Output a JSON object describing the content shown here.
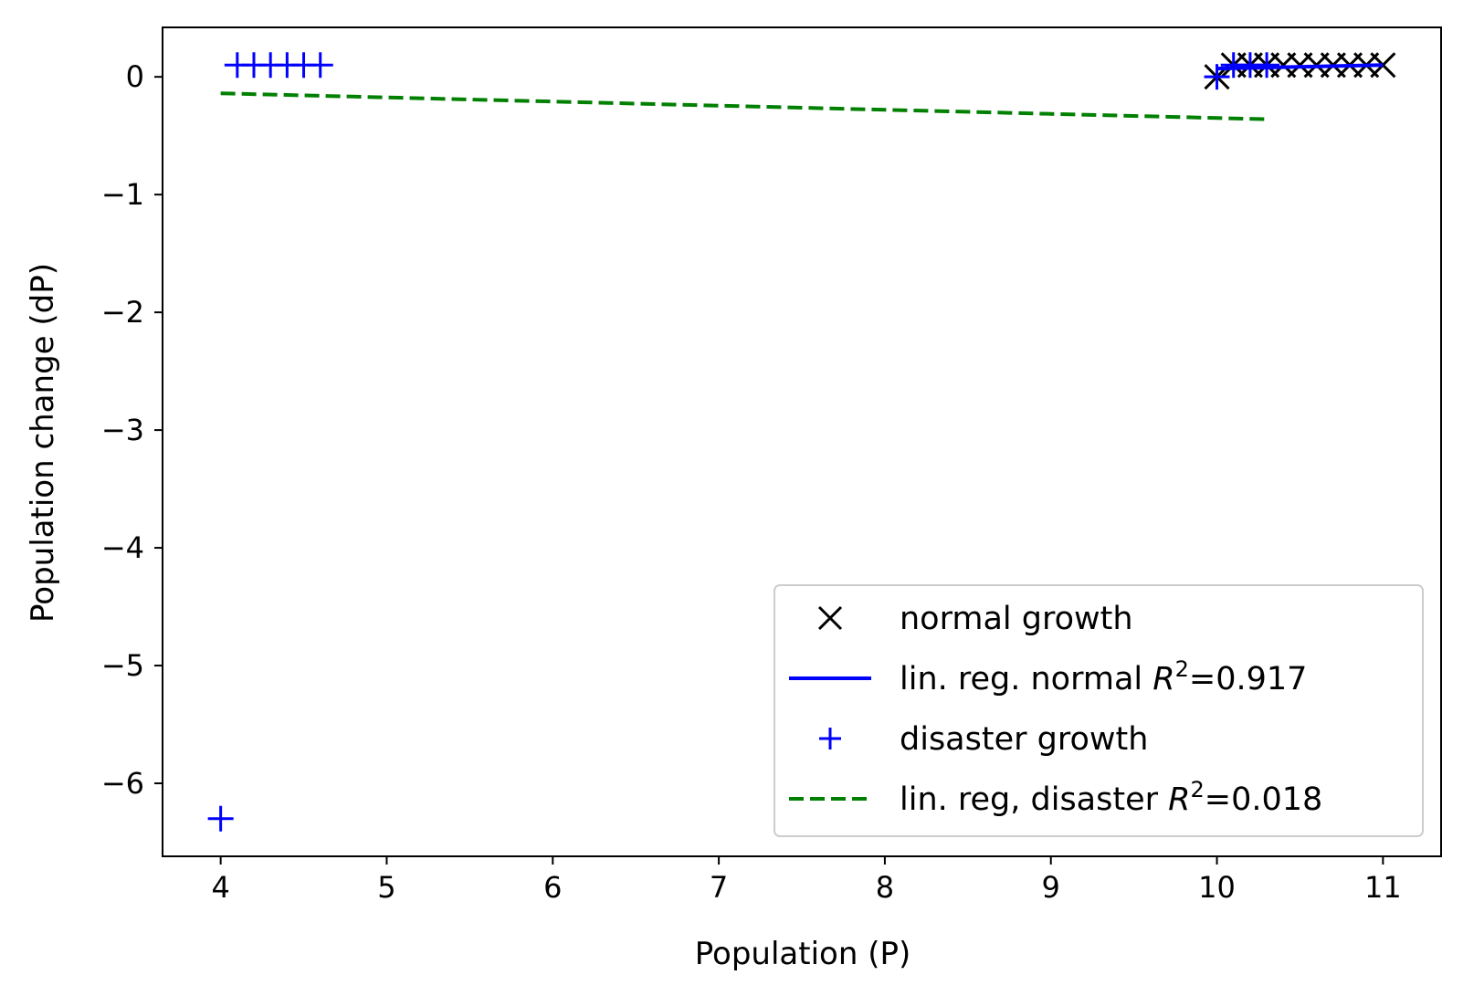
{
  "chart_data": {
    "type": "scatter",
    "xlabel": "Population (P)",
    "ylabel": "Population change (dP)",
    "xlim": [
      3.65,
      11.35
    ],
    "ylim": [
      -6.62,
      0.42
    ],
    "xticks": [
      4,
      5,
      6,
      7,
      8,
      9,
      10,
      11
    ],
    "xtick_labels": [
      "4",
      "5",
      "6",
      "7",
      "8",
      "9",
      "10",
      "11"
    ],
    "yticks": [
      0,
      -1,
      -2,
      -3,
      -4,
      -5,
      -6
    ],
    "ytick_labels": [
      "0",
      "−1",
      "−2",
      "−3",
      "−4",
      "−5",
      "−6"
    ],
    "grid": false,
    "legend_position": "lower right",
    "series": [
      {
        "name": "normal growth",
        "kind": "scatter",
        "marker": "x",
        "color": "#000000",
        "x": [
          10.0,
          10.1,
          10.2,
          10.3,
          10.4,
          10.5,
          10.6,
          10.7,
          10.8,
          10.9,
          11.0
        ],
        "y": [
          0.0,
          0.1,
          0.1,
          0.1,
          0.1,
          0.1,
          0.1,
          0.1,
          0.1,
          0.1,
          0.1
        ]
      },
      {
        "name": "lin. reg. normal",
        "r2_value": "0.917",
        "kind": "line",
        "style": "solid",
        "color": "#0000ff",
        "x": [
          10.0,
          11.0
        ],
        "y": [
          0.07,
          0.1
        ]
      },
      {
        "name": "disaster growth",
        "kind": "scatter",
        "marker": "+",
        "color": "#0000ff",
        "x": [
          4.0,
          4.1,
          4.2,
          4.3,
          4.4,
          4.5,
          4.6,
          10.0,
          10.1,
          10.2,
          10.3
        ],
        "y": [
          -6.3,
          0.1,
          0.1,
          0.1,
          0.1,
          0.1,
          0.1,
          0.0,
          0.1,
          0.1,
          0.1
        ]
      },
      {
        "name": "lin. reg, disaster",
        "r2_value": "0.018",
        "kind": "line",
        "style": "dashed",
        "color": "#008000",
        "x": [
          4.0,
          10.3
        ],
        "y": [
          -0.14,
          -0.36
        ]
      }
    ],
    "legend": [
      {
        "label": "normal growth",
        "r2": "",
        "symbol": "x",
        "color": "#000000"
      },
      {
        "label": "lin. reg. normal",
        "r2": "=0.917",
        "symbol": "line",
        "color": "#0000ff"
      },
      {
        "label": "disaster growth",
        "r2": "",
        "symbol": "+",
        "color": "#0000ff"
      },
      {
        "label": "lin. reg, disaster",
        "r2": "=0.018",
        "symbol": "dashed",
        "color": "#008000"
      }
    ]
  }
}
